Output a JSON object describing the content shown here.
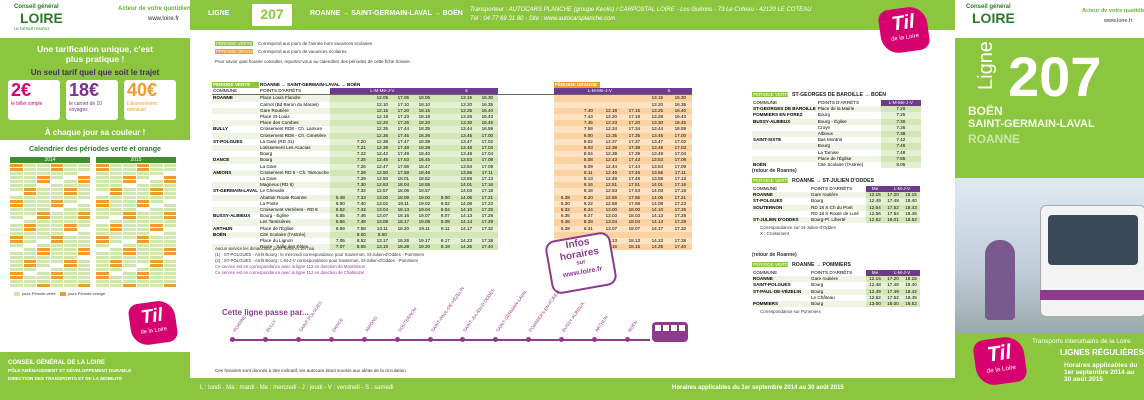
{
  "logo": {
    "name": "Til",
    "tagline": "de la Loire"
  },
  "left": {
    "brand": {
      "top": "Conseil général",
      "name": "LOIRE",
      "sub": "LE DÉPARTEMENT"
    },
    "slogan": "Acteur de votre quotidien",
    "site": "www.loire.fr",
    "tarif_title": "Une tarification unique, c'est plus pratique !",
    "tarif_sub": "Un seul tarif quel que soit le trajet",
    "prices": [
      {
        "price": "2€",
        "label": "le billet simple"
      },
      {
        "price": "18€",
        "label": "le carnet de 10 voyages"
      },
      {
        "price": "40€",
        "label": "l'abonnement mensuel"
      }
    ],
    "color_title": "À chaque jour sa couleur !",
    "calendar_title": "Calendrier des périodes verte et orange",
    "years": [
      "2014",
      "2015"
    ],
    "calendar_legend": [
      "jours Période verte",
      "jours Période orange"
    ],
    "contact": [
      "CONSEIL GÉNÉRAL DE LA LOIRE",
      "PÔLE AMÉNAGEMENT ET DÉVELOPPEMENT DURABLE",
      "DIRECTION DES TRANSPORTS ET DE LA MOBILITÉ"
    ]
  },
  "header": {
    "line_label": "LIGNE",
    "line_number": "207",
    "route": "ROANNE → SAINT-GERMAIN-LAVAL → BOËN",
    "carrier": "Transporteur : AUTOCARS PLANCHE (groupe Keolis) / CARPOSTAL LOIRE - Les Guérins - 73 Le Coteau - 42120 LE COTEAU",
    "contact": "Tél : 04 77 69 31 80 - Site : www.autocarsplanche.com"
  },
  "legend": {
    "green": "PÉRIODE VERTE",
    "green_text": "Correspond aux jours de l'année hors vacances scolaires",
    "orange": "PÉRIODE ORANGE",
    "orange_text": "Correspond aux jours de vacances scolaires",
    "note": "Pour savoir quel horaire consulter, reportez-vous au calendrier des périodes de cette fiche horaire."
  },
  "main_table": {
    "green_period": "PÉRIODE VERTE",
    "route": "ROANNE → SAINT-GERMAIN-LAVAL → BOËN",
    "orange_period": "PÉRIODE ORANGE",
    "col_commune": "COMMUNE",
    "col_stop": "POINTS D'ARRÊTS",
    "weekdays": "L-M-Me-J-V",
    "saturday": "S",
    "rows": [
      [
        "ROANNE",
        "Place Louis Flandre",
        null,
        null,
        "12.05",
        "17.05",
        "18.05",
        null,
        "13.15",
        "16.30",
        null,
        null,
        null,
        null,
        "13.15",
        "16.30"
      ],
      [
        null,
        "Carnot (Bd Baron du Marais)",
        null,
        null,
        "12.10",
        "17.10",
        "18.10",
        null,
        "13.20",
        "16.35",
        null,
        null,
        null,
        null,
        "13.20",
        "16.35"
      ],
      [
        null,
        "Gare Routière",
        null,
        null,
        "12.15",
        "17.20",
        "18.15",
        null,
        "13.25",
        "16.40",
        null,
        "7.40",
        "12.18",
        "17.15",
        "13.25",
        "16.40"
      ],
      [
        null,
        "Place St-Louis",
        null,
        null,
        "12.18",
        "17.23",
        "18.18",
        null,
        "13.28",
        "16.43",
        null,
        "7.43",
        "12.20",
        "17.18",
        "13.28",
        "16.43"
      ],
      [
        null,
        "Place des Combes",
        null,
        null,
        "12.20",
        "17.26",
        "18.20",
        null,
        "13.30",
        "16.45",
        null,
        "7.45",
        "12.23",
        "17.20",
        "13.30",
        "16.45"
      ],
      [
        "BULLY",
        "Croisement RD8 - Ch. Lamure",
        null,
        null,
        "12.35",
        "17.44",
        "18.35",
        null,
        "13.44",
        "16.59",
        null,
        "7.59",
        "12.34",
        "17.34",
        "13.44",
        "16.59"
      ],
      [
        null,
        "Croisement RD8 - Ch. Cimetière",
        null,
        null,
        "12.36",
        "17.45",
        "18.36",
        null,
        "13.45",
        "17.00",
        null,
        "8.00",
        "12.35",
        "17.35",
        "13.45",
        "17.00"
      ],
      [
        "ST-POLGUES",
        "La Gare (RD 41)",
        null,
        "7.20",
        "12.38",
        "17.47",
        "18.38",
        null,
        "13.47",
        "17.02",
        null,
        "8.02",
        "12.37",
        "17.37",
        "13.47",
        "17.02"
      ],
      [
        null,
        "Lotissement Les Acacias",
        null,
        "7.21",
        "12.39",
        "17.48",
        "18.39",
        null,
        "13.48",
        "17.03",
        null,
        "8.03",
        "12.38",
        "17.38",
        "13.48",
        "17.03"
      ],
      [
        null,
        "Bourg",
        null,
        "7.22",
        "12.42",
        "17.49",
        "18.40",
        null,
        "13.49",
        "17.04",
        null,
        "8.04",
        "12.39",
        "17.39",
        "13.49",
        "17.04"
      ],
      [
        "DANCE",
        "Bourg",
        null,
        "7.25",
        "12.46",
        "17.53",
        "18.45",
        null,
        "13.53",
        "17.08",
        null,
        "8.08",
        "12.43",
        "17.43",
        "13.53",
        "17.08"
      ],
      [
        null,
        "La Gare",
        null,
        "7.26",
        "12.47",
        "17.56",
        "18.47",
        null,
        "13.54",
        "17.09",
        null,
        "8.09",
        "12.44",
        "17.44",
        "13.54",
        "17.09"
      ],
      [
        "AMIONS",
        "Croisement RD 8 - Ch. Tamouche",
        null,
        "7.29",
        "12.50",
        "17.58",
        "18.49",
        null,
        "13.56",
        "17.11",
        null,
        "8.11",
        "12.46",
        "17.46",
        "13.56",
        "17.11"
      ],
      [
        null,
        "La Gare",
        null,
        "7.29",
        "12.50",
        "18.01",
        "18.52",
        null,
        "13.58",
        "17.13",
        null,
        "8.13",
        "12.48",
        "17.48",
        "13.58",
        "17.13"
      ],
      [
        null,
        "Magneux (RD 8)",
        null,
        "7.30",
        "12.53",
        "18.04",
        "18.55",
        null,
        "14.01",
        "17.16",
        null,
        "8.16",
        "12.51",
        "17.51",
        "14.01",
        "17.16"
      ],
      [
        "ST-GERMAIN-LAVAL",
        "Le Chevalin",
        null,
        "7.32",
        "12.57",
        "18.06",
        "18.57",
        null,
        "14.03",
        "17.18",
        null,
        "8.18",
        "12.53",
        "17.53",
        "14.03",
        "17.18"
      ],
      [
        null,
        "Abattoir Route Roanne",
        "6.48",
        "7.33",
        "13.00",
        "18.09",
        "19.00",
        "8.00",
        "14.06",
        "17.21",
        "6.28",
        "8.20",
        "12.56",
        "17.56",
        "14.06",
        "17.21"
      ],
      [
        null,
        "La Poste",
        "6.50",
        "7.40",
        "13.02",
        "18.11",
        "19.02",
        "8.02",
        "14.08",
        "17.23",
        "6.30",
        "8.22",
        "12.58",
        "17.58",
        "14.08",
        "17.23"
      ],
      [
        null,
        "Croisement Verrières - RD 8",
        "6.52",
        "7.42",
        "13.04",
        "18.13",
        "19.04",
        "8.04",
        "14.10",
        "17.25",
        "6.32",
        "8.24",
        "13.00",
        "18.00",
        "14.10",
        "17.25"
      ],
      [
        "BUSSY-ALBIEUX",
        "Bourg - Église",
        "6.55",
        "7.46",
        "13.07",
        "18.16",
        "19.07",
        "8.07",
        "14.13",
        "17.28",
        "6.35",
        "8.27",
        "13.03",
        "18.03",
        "14.13",
        "17.28"
      ],
      [
        null,
        "Les Tamisières",
        "6.56",
        "7.48",
        "13.08",
        "18.17",
        "19.08",
        "8.08",
        "14.14",
        "17.29",
        "6.36",
        "8.28",
        "13.04",
        "18.04",
        "14.14",
        "17.29"
      ],
      [
        "ARTHUN",
        "Place de l'Église",
        "6.59",
        "7.58",
        "13.11",
        "18.20",
        "19.11",
        "8.11",
        "14.17",
        "17.32",
        "6.39",
        "8.31",
        "13.07",
        "18.07",
        "14.17",
        "17.32"
      ],
      [
        "BOËN",
        "Cité Scolaire (l'Astrée)",
        null,
        "8.00",
        "8.50",
        null,
        null,
        null,
        null,
        null,
        null,
        null,
        null,
        null,
        null,
        null
      ],
      [
        null,
        "Place du Lignon",
        "7.05",
        "8.52",
        "13.17",
        "18.26",
        "19.17",
        "8.17",
        "14.23",
        "17.38",
        "6.45",
        "8.37",
        "13.13",
        "18.13",
        "14.23",
        "17.38"
      ],
      [
        null,
        "Route - Salle des Fêtes",
        "7.07",
        "8.55",
        "13.19",
        "18.28",
        "19.20",
        "8.19",
        "14.25",
        "17.40",
        "6.47",
        "8.39",
        "13.15",
        "18.15",
        "14.25",
        "17.40"
      ]
    ]
  },
  "notes": [
    "Aucun service les dimanches, jours fériés et 1er mai",
    "(1) : ST-POLGUES - Arrêt Bourg : le mercredi correspondance pour Souternon, St-Julien-d'Oddes - Pommiers",
    "(2) : ST-POLGUES - Arrêt Bourg : L-M-J-V correspondance pour Souternon, St-Julien-d'Oddes - Pommiers",
    "Ce service est en correspondance avec la ligne 112 en direction de Montbrison",
    "Ce service est en correspondance avec la ligne 112 en direction de Chalmazel"
  ],
  "infos": [
    "Infos",
    "horaires",
    "sur",
    "www.loire.fr"
  ],
  "route_map": {
    "title": "Cette ligne passe par...",
    "stops": [
      "ROANNE",
      "BULLY",
      "SAINT-POLGUES",
      "DANCE",
      "AMIONS",
      "SOUTERNON",
      "SAINT-PAUL-DE-VÉZELIN",
      "SAINT-JULIEN-D'ODDES",
      "SAINT-GERMAIN-LAVAL",
      "POMMIERS-EN-FOREZ",
      "BUSSY-ALBIEUX",
      "ARTHUN",
      "BOËN"
    ]
  },
  "disclaimer": "Ces horaires sont donnés à titre indicatif, les autocars étant soumis aux aléas de la circulation.",
  "footer": {
    "days": "L : lundi - Ma : mardi - Me : mercredi - J : jeudi - V : vendredi - S : samedi",
    "validity": "Horaires applicables du 1er septembre 2014 au 30 août 2015"
  },
  "side_tables": [
    {
      "context": null,
      "period": "PÉRIODE VERTE",
      "route": "ST-GEORGES DE BAROILLE → BOËN",
      "columns": [
        "COMMUNE",
        "POINTS D'ARRÊTS",
        "L-M-Me-J-V"
      ],
      "rows": [
        [
          "ST-GEORGES DE BAROILLE",
          "Place de la Mairie",
          "7.20"
        ],
        [
          "POMMIERS EN FOREZ",
          "Bourg",
          "7.25"
        ],
        [
          "BUSSY-ALBIEUX",
          "Bourg - Église",
          "7.30"
        ],
        [
          null,
          "Croyé",
          "7.36"
        ],
        [
          null,
          "Albieux",
          "7.38"
        ],
        [
          "SAINT-SIXTE",
          "Bas Montrol",
          "7.42"
        ],
        [
          null,
          "Bourg",
          "7.46"
        ],
        [
          null,
          "La Tamise",
          "7.48"
        ],
        [
          null,
          "Place de l'Église",
          "7.55"
        ],
        [
          "BOËN",
          "Cité Scolaire (l'Astrée)",
          "8.05"
        ]
      ],
      "notes": []
    },
    {
      "context": "(retour de Roanne)",
      "period": "PÉRIODE VERTE",
      "route": "ROANNE → ST-JULIEN D'ODDES",
      "columns": [
        "COMMUNE",
        "POINTS D'ARRÊTS",
        "Me",
        "L-M-J-V",
        ""
      ],
      "rows": [
        [
          "ROANNE",
          "Gare routière",
          "12.15",
          "17.20",
          "18.15"
        ],
        [
          "ST-POLGUES",
          "Bourg",
          "12.49",
          "17.49",
          "18.40"
        ],
        [
          "SOUTERNON",
          "RD 18 X Ch du Pont",
          "12.54",
          "17.52",
          "18.43"
        ],
        [
          null,
          "RD 18 X Route de Luré",
          "12.56",
          "17.54",
          "18.45"
        ],
        [
          "ST-JULIEN D'ODDES",
          "Bourg-Pl. Liberté",
          "12.52",
          "18.01",
          "18.52"
        ]
      ],
      "notes": [
        "Correspondance sur St-Julien-d'Oddes",
        "X : Croisement"
      ]
    },
    {
      "context": "(retour de Roanne)",
      "period": "PÉRIODE VERTE",
      "route": "ROANNE → POMMIERS",
      "columns": [
        "COMMUNE",
        "POINTS D'ARRÊTS",
        "Me",
        "L-M-J-V",
        ""
      ],
      "rows": [
        [
          "ROANNE",
          "Gare routière",
          "12.15",
          "17.20",
          "18.15"
        ],
        [
          "SAINT-POLGUES",
          "Bourg",
          "12.48",
          "17.48",
          "18.40"
        ],
        [
          "ST-PAUL-DE-VÉZELIN",
          "Bourg",
          "12.49",
          "17.49",
          "18.42"
        ],
        [
          null,
          "Le Château",
          "12.52",
          "17.52",
          "18.45"
        ],
        [
          "POMMIERS",
          "Bourg",
          "13.00",
          "18.00",
          "18.52"
        ]
      ],
      "notes": [
        "Correspondance sur Pommiers"
      ]
    }
  ],
  "cover": {
    "word": "Ligne",
    "number": "207",
    "stops": [
      "BOËN",
      "SAINT-GERMAIN-LAVAL",
      "ROANNE"
    ],
    "network": "Transports interurbains de la Loire",
    "kind": "LIGNES RÉGULIÈRES",
    "validity": "Horaires applicables du 1er septembre 2014 au 30 août 2015"
  }
}
